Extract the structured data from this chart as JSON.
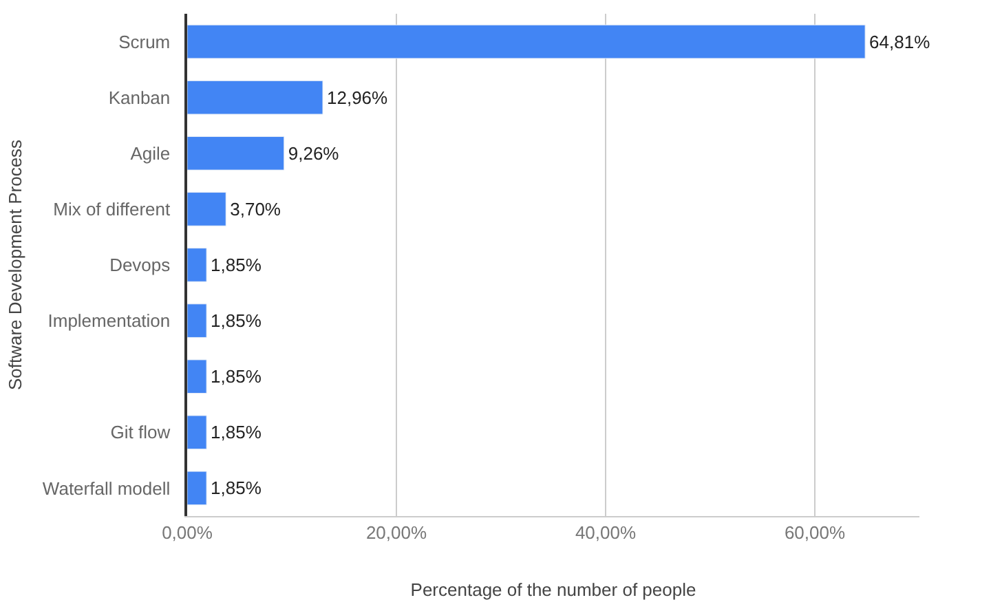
{
  "chart_data": {
    "type": "bar",
    "orientation": "horizontal",
    "xlabel": "Percentage of the number of people",
    "ylabel": "Software Development Process",
    "categories": [
      "Scrum",
      "Kanban",
      "Agile",
      "Mix of different",
      "Devops",
      "Implementation",
      null,
      "Git flow",
      "Waterfall modell"
    ],
    "values": [
      64.81,
      12.96,
      9.26,
      3.7,
      1.85,
      1.85,
      1.85,
      1.85,
      1.85
    ],
    "value_labels": [
      "64,81%",
      "12,96%",
      "9,26%",
      "3,70%",
      "1,85%",
      "1,85%",
      "1,85%",
      "1,85%",
      "1,85%"
    ],
    "color": "#4285f4",
    "xlim": [
      0,
      70
    ],
    "xticks": [
      {
        "value": 0,
        "label": "0,00%"
      },
      {
        "value": 20,
        "label": "20,00%"
      },
      {
        "value": 40,
        "label": "40,00%"
      },
      {
        "value": 60,
        "label": "60,00%"
      }
    ],
    "grid": "x",
    "legend": false
  }
}
